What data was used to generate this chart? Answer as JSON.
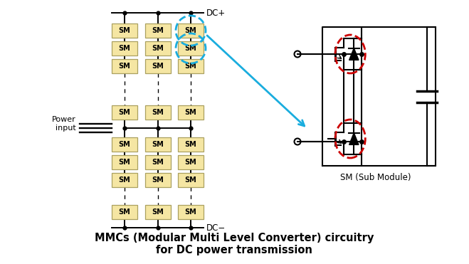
{
  "title_line1": "MMCs (Modular Multi Level Converter) circuitry",
  "title_line2": "for DC power transmission",
  "title_fontsize": 10.5,
  "title_fontweight": "bold",
  "sm_box_color": "#f5e6a3",
  "sm_box_edge": "#aaa060",
  "sm_text": "SM",
  "sm_fontsize": 7.0,
  "dc_plus_label": "DC+",
  "dc_minus_label": "DC−",
  "power_input_label": "Power\ninput",
  "sm_sub_module_label": "SM (Sub Module)",
  "arrow_color": "#1aadde",
  "red_circle_color": "#cc0000",
  "blue_circle_color": "#1aadde",
  "background": "#ffffff",
  "lw": 1.4
}
